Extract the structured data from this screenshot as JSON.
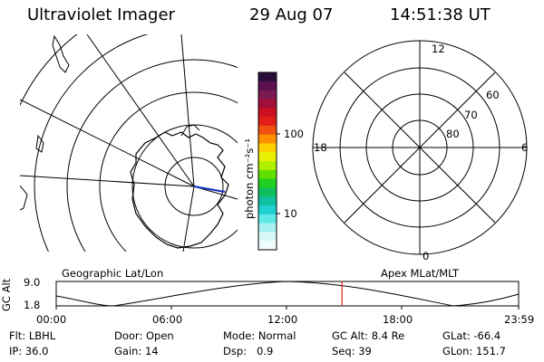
{
  "header": {
    "title": "Ultraviolet Imager",
    "date": "29 Aug 07",
    "time": "14:51:38 UT"
  },
  "colorbar": {
    "unit_label": "photon cm⁻²s⁻¹",
    "tick_100": "100",
    "tick_10": "10",
    "colors": [
      "#2a0d3a",
      "#5a1050",
      "#7a1a50",
      "#a0103a",
      "#cc1020",
      "#e02018",
      "#f05010",
      "#ff9000",
      "#ffd000",
      "#e8f000",
      "#b0f000",
      "#60e000",
      "#20d020",
      "#10c060",
      "#10c0a0",
      "#20d0d0",
      "#60e8e8",
      "#a8f0f0",
      "#d8f8f8",
      "#f0fcfc"
    ]
  },
  "left_panel": {
    "caption": "Geographic Lat/Lon"
  },
  "right_panel": {
    "caption": "Apex MLat/MLT",
    "mlt_12": "12",
    "mlt_18": "18",
    "mlt_6": "6",
    "mlt_0": "0",
    "lat_60": "60",
    "lat_70": "70",
    "lat_80": "80"
  },
  "alt_strip": {
    "ylabel": "GC Alt",
    "y_top": "9.0",
    "y_bottom": "1.8",
    "xticks": [
      "00:00",
      "06:00",
      "12:00",
      "18:00",
      "23:59"
    ],
    "marker_time_fraction": 0.618
  },
  "footer": {
    "flt_label": "Flt:",
    "flt_value": "LBHL",
    "ip_label": "IP:",
    "ip_value": "36.0",
    "door_label": "Door:",
    "door_value": "Open",
    "gain_label": "Gain:",
    "gain_value": "14",
    "mode_label": "Mode:",
    "mode_value": "Normal",
    "dsp_label": "Dsp:",
    "dsp_value": "0.9",
    "gcalt_label": "GC Alt:",
    "gcalt_value": "8.4 Re",
    "seq_label": "Seq:",
    "seq_value": "39",
    "glat_label": "GLat:",
    "glat_value": "-66.4",
    "glon_label": "GLon:",
    "glon_value": "151.7"
  }
}
